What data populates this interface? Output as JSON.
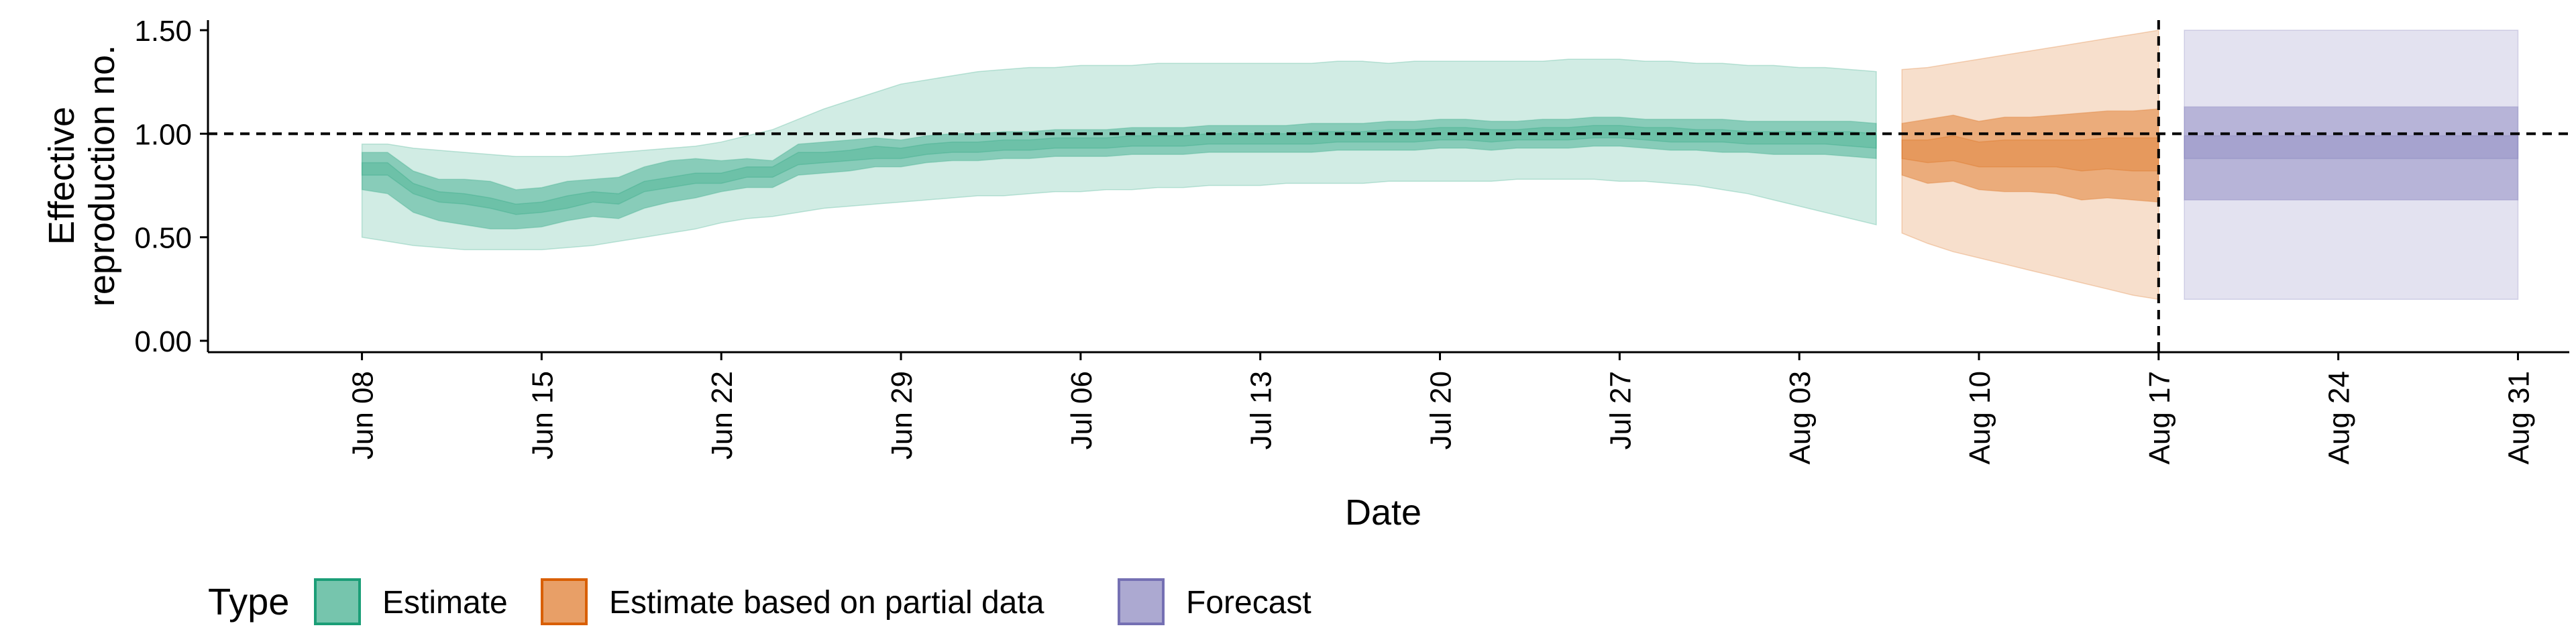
{
  "chart_data": {
    "type": "area",
    "xlabel": "Date",
    "ylabel": "Effective\nreproduction no.",
    "ylim": [
      0,
      1.5
    ],
    "xlim": [
      "2020-06-02",
      "2020-09-02"
    ],
    "y_ticks": [
      0,
      0.5,
      1.0,
      1.5
    ],
    "y_tick_labels": [
      "0.00",
      "0.50",
      "1.00",
      "1.50"
    ],
    "x_ticks": [
      "2020-06-08",
      "2020-06-15",
      "2020-06-22",
      "2020-06-29",
      "2020-07-06",
      "2020-07-13",
      "2020-07-20",
      "2020-07-27",
      "2020-08-03",
      "2020-08-10",
      "2020-08-17",
      "2020-08-24",
      "2020-08-31"
    ],
    "x_tick_labels": [
      "Jun 08",
      "Jun 15",
      "Jun 22",
      "Jun 29",
      "Jul 06",
      "Jul 13",
      "Jul 20",
      "Jul 27",
      "Aug 03",
      "Aug 10",
      "Aug 17",
      "Aug 24",
      "Aug 31"
    ],
    "reference_lines": {
      "horizontal_y": 1.0,
      "vertical_x": "2020-08-17",
      "style": "dashed"
    },
    "grid": false,
    "legend": {
      "title": "Type",
      "placement": "bottom-left",
      "entries": [
        {
          "label": "Estimate",
          "color": "#1b9e77"
        },
        {
          "label": "Estimate based on partial data",
          "color": "#d95f02"
        },
        {
          "label": "Forecast",
          "color": "#7570b3"
        }
      ]
    },
    "series": [
      {
        "name": "Estimate",
        "color": "#1b9e77",
        "x": [
          "2020-06-08",
          "2020-06-09",
          "2020-06-10",
          "2020-06-11",
          "2020-06-12",
          "2020-06-13",
          "2020-06-14",
          "2020-06-15",
          "2020-06-16",
          "2020-06-17",
          "2020-06-18",
          "2020-06-19",
          "2020-06-20",
          "2020-06-21",
          "2020-06-22",
          "2020-06-23",
          "2020-06-24",
          "2020-06-25",
          "2020-06-26",
          "2020-06-27",
          "2020-06-28",
          "2020-06-29",
          "2020-06-30",
          "2020-07-01",
          "2020-07-02",
          "2020-07-03",
          "2020-07-04",
          "2020-07-05",
          "2020-07-06",
          "2020-07-07",
          "2020-07-08",
          "2020-07-09",
          "2020-07-10",
          "2020-07-11",
          "2020-07-12",
          "2020-07-13",
          "2020-07-14",
          "2020-07-15",
          "2020-07-16",
          "2020-07-17",
          "2020-07-18",
          "2020-07-19",
          "2020-07-20",
          "2020-07-21",
          "2020-07-22",
          "2020-07-23",
          "2020-07-24",
          "2020-07-25",
          "2020-07-26",
          "2020-07-27",
          "2020-07-28",
          "2020-07-29",
          "2020-07-30",
          "2020-07-31",
          "2020-08-01",
          "2020-08-02",
          "2020-08-03",
          "2020-08-04",
          "2020-08-05",
          "2020-08-06"
        ],
        "lower_90": [
          0.5,
          0.48,
          0.46,
          0.45,
          0.44,
          0.44,
          0.44,
          0.44,
          0.45,
          0.46,
          0.48,
          0.5,
          0.52,
          0.54,
          0.57,
          0.59,
          0.6,
          0.62,
          0.64,
          0.65,
          0.66,
          0.67,
          0.68,
          0.69,
          0.7,
          0.7,
          0.71,
          0.72,
          0.72,
          0.73,
          0.73,
          0.74,
          0.74,
          0.75,
          0.75,
          0.75,
          0.76,
          0.76,
          0.76,
          0.76,
          0.77,
          0.77,
          0.77,
          0.77,
          0.77,
          0.78,
          0.78,
          0.78,
          0.78,
          0.77,
          0.77,
          0.76,
          0.75,
          0.73,
          0.71,
          0.68,
          0.65,
          0.62,
          0.59,
          0.56
        ],
        "upper_90": [
          0.95,
          0.95,
          0.93,
          0.92,
          0.91,
          0.9,
          0.89,
          0.89,
          0.89,
          0.9,
          0.91,
          0.92,
          0.93,
          0.94,
          0.96,
          0.99,
          1.02,
          1.07,
          1.12,
          1.16,
          1.2,
          1.24,
          1.26,
          1.28,
          1.3,
          1.31,
          1.32,
          1.32,
          1.33,
          1.33,
          1.33,
          1.34,
          1.34,
          1.34,
          1.34,
          1.34,
          1.34,
          1.34,
          1.35,
          1.35,
          1.34,
          1.35,
          1.35,
          1.35,
          1.35,
          1.35,
          1.35,
          1.36,
          1.36,
          1.36,
          1.35,
          1.35,
          1.34,
          1.34,
          1.33,
          1.33,
          1.32,
          1.32,
          1.31,
          1.3
        ],
        "lower_50": [
          0.73,
          0.71,
          0.62,
          0.58,
          0.56,
          0.54,
          0.54,
          0.55,
          0.58,
          0.6,
          0.59,
          0.64,
          0.67,
          0.69,
          0.72,
          0.74,
          0.74,
          0.8,
          0.81,
          0.82,
          0.84,
          0.84,
          0.86,
          0.87,
          0.87,
          0.88,
          0.88,
          0.89,
          0.89,
          0.89,
          0.9,
          0.9,
          0.9,
          0.91,
          0.91,
          0.91,
          0.91,
          0.91,
          0.92,
          0.92,
          0.92,
          0.92,
          0.93,
          0.93,
          0.92,
          0.93,
          0.93,
          0.93,
          0.94,
          0.94,
          0.93,
          0.92,
          0.92,
          0.91,
          0.91,
          0.9,
          0.9,
          0.9,
          0.89,
          0.88
        ],
        "upper_50": [
          0.91,
          0.91,
          0.82,
          0.78,
          0.78,
          0.77,
          0.73,
          0.74,
          0.77,
          0.78,
          0.79,
          0.84,
          0.87,
          0.88,
          0.87,
          0.88,
          0.87,
          0.95,
          0.96,
          0.97,
          0.98,
          0.97,
          0.99,
          1.0,
          1.0,
          1.01,
          1.01,
          1.02,
          1.02,
          1.02,
          1.03,
          1.03,
          1.03,
          1.04,
          1.04,
          1.04,
          1.04,
          1.05,
          1.05,
          1.05,
          1.06,
          1.06,
          1.07,
          1.07,
          1.06,
          1.06,
          1.07,
          1.07,
          1.08,
          1.08,
          1.07,
          1.07,
          1.07,
          1.07,
          1.06,
          1.06,
          1.06,
          1.06,
          1.06,
          1.05
        ],
        "lower_20": [
          0.8,
          0.8,
          0.71,
          0.67,
          0.66,
          0.64,
          0.61,
          0.62,
          0.64,
          0.67,
          0.66,
          0.72,
          0.74,
          0.76,
          0.76,
          0.79,
          0.79,
          0.85,
          0.86,
          0.87,
          0.88,
          0.88,
          0.9,
          0.91,
          0.91,
          0.92,
          0.92,
          0.93,
          0.93,
          0.93,
          0.94,
          0.94,
          0.94,
          0.95,
          0.95,
          0.95,
          0.95,
          0.95,
          0.96,
          0.96,
          0.96,
          0.96,
          0.97,
          0.97,
          0.96,
          0.97,
          0.97,
          0.97,
          0.98,
          0.98,
          0.97,
          0.96,
          0.96,
          0.96,
          0.95,
          0.95,
          0.95,
          0.95,
          0.94,
          0.93
        ],
        "upper_20": [
          0.86,
          0.86,
          0.76,
          0.72,
          0.71,
          0.69,
          0.66,
          0.67,
          0.7,
          0.72,
          0.71,
          0.77,
          0.79,
          0.81,
          0.81,
          0.84,
          0.84,
          0.91,
          0.91,
          0.92,
          0.94,
          0.93,
          0.95,
          0.96,
          0.96,
          0.97,
          0.97,
          0.98,
          0.98,
          0.98,
          0.99,
          0.99,
          0.99,
          1.0,
          1.0,
          1.0,
          1.0,
          1.01,
          1.01,
          1.01,
          1.02,
          1.02,
          1.03,
          1.03,
          1.02,
          1.02,
          1.03,
          1.03,
          1.04,
          1.04,
          1.03,
          1.03,
          1.02,
          1.02,
          1.01,
          1.01,
          1.01,
          1.01,
          1.01,
          1.0
        ]
      },
      {
        "name": "Estimate based on partial data",
        "color": "#d95f02",
        "x": [
          "2020-08-07",
          "2020-08-08",
          "2020-08-09",
          "2020-08-10",
          "2020-08-11",
          "2020-08-12",
          "2020-08-13",
          "2020-08-14",
          "2020-08-15",
          "2020-08-16",
          "2020-08-17"
        ],
        "lower_90": [
          0.52,
          0.47,
          0.43,
          0.4,
          0.37,
          0.34,
          0.31,
          0.28,
          0.25,
          0.22,
          0.2
        ],
        "upper_90": [
          1.31,
          1.32,
          1.34,
          1.36,
          1.38,
          1.4,
          1.42,
          1.44,
          1.46,
          1.48,
          1.5
        ],
        "lower_50": [
          0.8,
          0.76,
          0.77,
          0.73,
          0.72,
          0.72,
          0.71,
          0.68,
          0.69,
          0.68,
          0.67
        ],
        "upper_50": [
          1.05,
          1.07,
          1.09,
          1.06,
          1.08,
          1.08,
          1.09,
          1.1,
          1.11,
          1.11,
          1.12
        ],
        "lower_20": [
          0.88,
          0.86,
          0.87,
          0.84,
          0.84,
          0.84,
          0.84,
          0.82,
          0.83,
          0.82,
          0.82
        ],
        "upper_20": [
          0.97,
          0.97,
          0.99,
          0.96,
          0.97,
          0.97,
          0.97,
          0.97,
          0.98,
          0.98,
          0.98
        ]
      },
      {
        "name": "Forecast",
        "color": "#7570b3",
        "x": [
          "2020-08-18",
          "2020-08-31"
        ],
        "lower_90": [
          0.2,
          0.2
        ],
        "upper_90": [
          1.5,
          1.5
        ],
        "lower_50": [
          0.68,
          0.68
        ],
        "upper_50": [
          1.13,
          1.13
        ],
        "lower_20": [
          0.88,
          0.88
        ],
        "upper_20": [
          0.99,
          0.99
        ]
      }
    ]
  }
}
